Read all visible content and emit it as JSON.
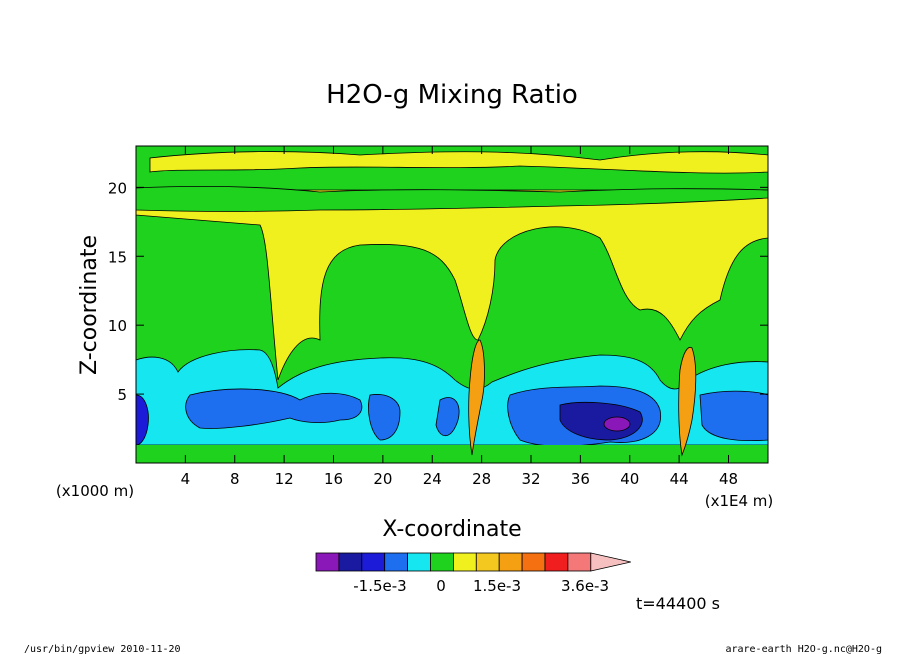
{
  "footer": {
    "left": "/usr/bin/gpview  2010-11-20",
    "right": "arare-earth_H2O-g.nc@H2O-g"
  },
  "time_label": "t=44400 s",
  "chart_data": {
    "type": "heatmap",
    "title": "H2O-g Mixing Ratio",
    "xlabel": "X-coordinate",
    "ylabel": "Z-coordinate",
    "x_unit": "(x1E4 m)",
    "y_unit": "(x1000 m)",
    "xlim": [
      0,
      51.2
    ],
    "ylim": [
      0,
      23
    ],
    "x_ticks": [
      4,
      8,
      12,
      16,
      20,
      24,
      28,
      32,
      36,
      40,
      44,
      48
    ],
    "y_ticks": [
      5,
      10,
      15,
      20
    ],
    "grid": false,
    "colorbar": {
      "colors": [
        "#8a18b8",
        "#1a1aa0",
        "#1c1cd8",
        "#1e6ef0",
        "#16e6f0",
        "#1ed21e",
        "#f0f01e",
        "#f4c81e",
        "#f4a012",
        "#f47010",
        "#f01e1e",
        "#f47878",
        "#f7c0c0"
      ],
      "labels": [
        "-1.5e-3",
        "0",
        "1.5e-3",
        "3.6e-3"
      ]
    },
    "bands_description": "yellow 15-22, green band 19-21, cyan 1-7, blue 1-6 with purple core near x=39, orange plumes near x=27 and x=45"
  }
}
